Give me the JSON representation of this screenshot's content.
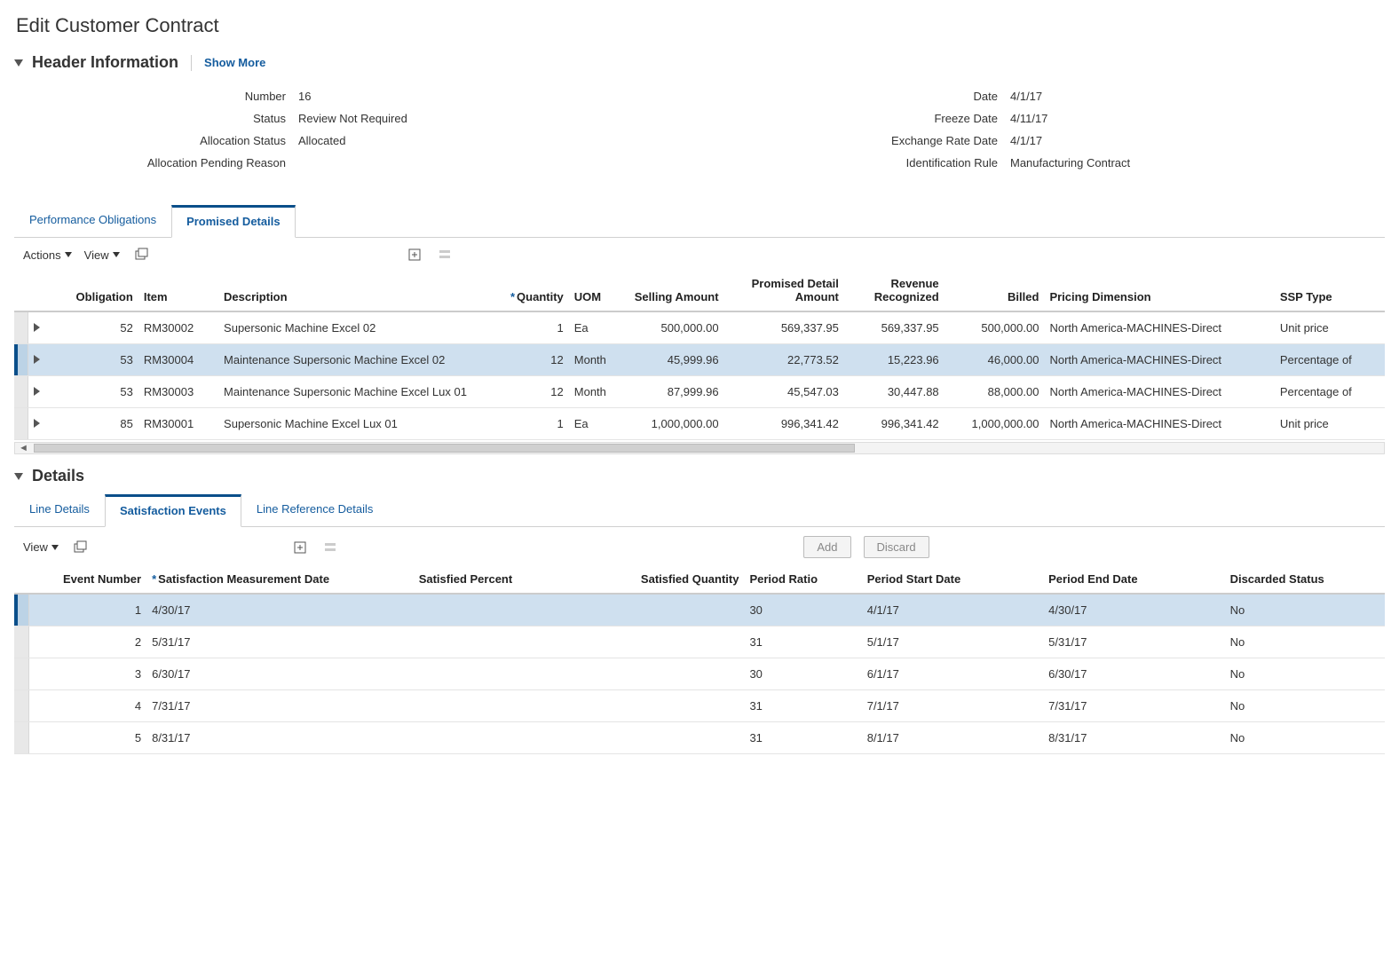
{
  "page_title": "Edit Customer Contract",
  "header_section": {
    "title": "Header Information",
    "show_more": "Show More",
    "left": [
      {
        "label": "Number",
        "value": "16"
      },
      {
        "label": "Status",
        "value": "Review Not Required"
      },
      {
        "label": "Allocation Status",
        "value": "Allocated"
      },
      {
        "label": "Allocation Pending Reason",
        "value": ""
      }
    ],
    "right": [
      {
        "label": "Date",
        "value": "4/1/17"
      },
      {
        "label": "Freeze Date",
        "value": "4/11/17"
      },
      {
        "label": "Exchange Rate Date",
        "value": "4/1/17"
      },
      {
        "label": "Identification Rule",
        "value": "Manufacturing Contract"
      }
    ]
  },
  "main_tabs": {
    "items": [
      {
        "label": "Performance Obligations",
        "active": false
      },
      {
        "label": "Promised Details",
        "active": true
      }
    ]
  },
  "main_toolbar": {
    "actions": "Actions",
    "view": "View",
    "detach_icon": "detach-icon",
    "export_icon": "export-icon",
    "wrap_icon": "wrap-icon"
  },
  "main_table": {
    "columns": {
      "obligation": "Obligation",
      "item": "Item",
      "description": "Description",
      "quantity": "Quantity",
      "uom": "UOM",
      "selling": "Selling Amount",
      "promised": "Promised Detail Amount",
      "revenue": "Revenue Recognized",
      "billed": "Billed",
      "pricing_dim": "Pricing Dimension",
      "ssp_type": "SSP Type"
    },
    "rows": [
      {
        "obligation": "52",
        "item": "RM30002",
        "description": "Supersonic Machine Excel 02",
        "qty": "1",
        "uom": "Ea",
        "selling": "500,000.00",
        "promised": "569,337.95",
        "revenue": "569,337.95",
        "billed": "500,000.00",
        "pricing_dim": "North America-MACHINES-Direct",
        "ssp": "Unit price",
        "selected": false
      },
      {
        "obligation": "53",
        "item": "RM30004",
        "description": "Maintenance Supersonic Machine Excel 02",
        "qty": "12",
        "uom": "Month",
        "selling": "45,999.96",
        "promised": "22,773.52",
        "revenue": "15,223.96",
        "billed": "46,000.00",
        "pricing_dim": "North America-MACHINES-Direct",
        "ssp": "Percentage of",
        "selected": true
      },
      {
        "obligation": "53",
        "item": "RM30003",
        "description": "Maintenance Supersonic Machine Excel Lux 01",
        "qty": "12",
        "uom": "Month",
        "selling": "87,999.96",
        "promised": "45,547.03",
        "revenue": "30,447.88",
        "billed": "88,000.00",
        "pricing_dim": "North America-MACHINES-Direct",
        "ssp": "Percentage of",
        "selected": false
      },
      {
        "obligation": "85",
        "item": "RM30001",
        "description": "Supersonic Machine Excel Lux 01",
        "qty": "1",
        "uom": "Ea",
        "selling": "1,000,000.00",
        "promised": "996,341.42",
        "revenue": "996,341.42",
        "billed": "1,000,000.00",
        "pricing_dim": "North America-MACHINES-Direct",
        "ssp": "Unit price",
        "selected": false
      }
    ]
  },
  "details_section": {
    "title": "Details"
  },
  "details_tabs": {
    "items": [
      {
        "label": "Line Details",
        "active": false
      },
      {
        "label": "Satisfaction Events",
        "active": true
      },
      {
        "label": "Line Reference Details",
        "active": false
      }
    ]
  },
  "details_toolbar": {
    "view": "View",
    "add": "Add",
    "discard": "Discard"
  },
  "events_table": {
    "columns": {
      "event_number": "Event Number",
      "meas_date": "Satisfaction Measurement Date",
      "sat_pct": "Satisfied Percent",
      "sat_qty": "Satisfied Quantity",
      "period_ratio": "Period Ratio",
      "period_start": "Period Start Date",
      "period_end": "Period End Date",
      "discarded": "Discarded Status"
    },
    "rows": [
      {
        "num": "1",
        "date": "4/30/17",
        "pct": "",
        "qty": "",
        "ratio": "30",
        "pstart": "4/1/17",
        "pend": "4/30/17",
        "disc": "No",
        "selected": true
      },
      {
        "num": "2",
        "date": "5/31/17",
        "pct": "",
        "qty": "",
        "ratio": "31",
        "pstart": "5/1/17",
        "pend": "5/31/17",
        "disc": "No",
        "selected": false
      },
      {
        "num": "3",
        "date": "6/30/17",
        "pct": "",
        "qty": "",
        "ratio": "30",
        "pstart": "6/1/17",
        "pend": "6/30/17",
        "disc": "No",
        "selected": false
      },
      {
        "num": "4",
        "date": "7/31/17",
        "pct": "",
        "qty": "",
        "ratio": "31",
        "pstart": "7/1/17",
        "pend": "7/31/17",
        "disc": "No",
        "selected": false
      },
      {
        "num": "5",
        "date": "8/31/17",
        "pct": "",
        "qty": "",
        "ratio": "31",
        "pstart": "8/1/17",
        "pend": "8/31/17",
        "disc": "No",
        "selected": false
      }
    ]
  },
  "colors": {
    "link": "#145c9e",
    "accent": "#0a4f8a",
    "row_selected": "#cfe0ef",
    "border": "#d0d0d0"
  }
}
